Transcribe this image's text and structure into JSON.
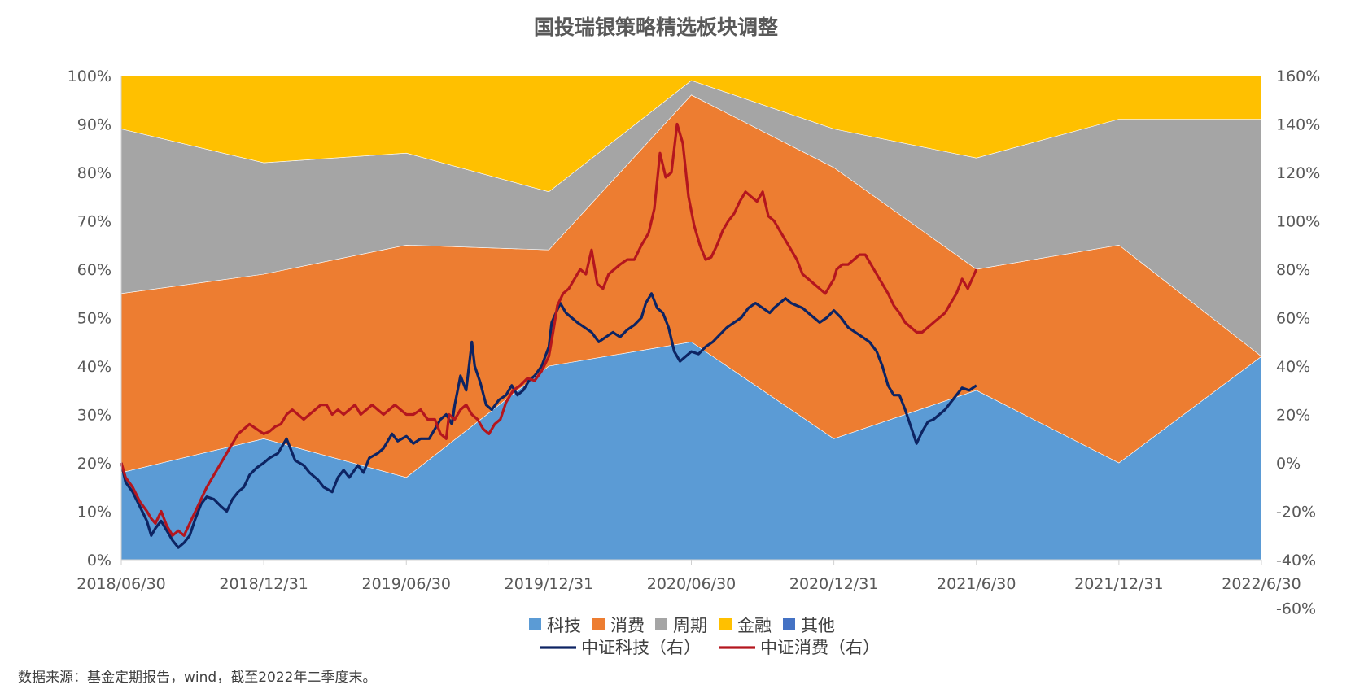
{
  "chart_data": {
    "type": "area",
    "title": "国投瑞银策略精选板块调整",
    "source": "数据来源：基金定期报告，wind，截至2022年二季度末。",
    "x_tick_labels": [
      "2018/06/30",
      "2018/12/31",
      "2019/06/30",
      "2019/12/31",
      "2020/06/30",
      "2020/12/31",
      "2021/6/30",
      "2021/12/31",
      "2022/6/30"
    ],
    "left_axis": {
      "ylim": [
        0,
        100
      ],
      "ticks": [
        "0%",
        "10%",
        "20%",
        "30%",
        "40%",
        "50%",
        "60%",
        "70%",
        "80%",
        "90%",
        "100%"
      ]
    },
    "right_axis": {
      "ylim": [
        -40,
        160
      ],
      "ticks": [
        "-60%",
        "-40%",
        "-20%",
        "0%",
        "20%",
        "40%",
        "60%",
        "80%",
        "100%",
        "120%",
        "140%",
        "160%"
      ]
    },
    "stacked_area": {
      "periods": [
        "2018/06/30",
        "2018/12/31",
        "2019/06/30",
        "2019/12/31",
        "2020/06/30",
        "2020/12/31",
        "2021/6/30",
        "2021/12/31",
        "2022/6/30"
      ],
      "series": [
        {
          "name": "科技",
          "color": "#5B9BD5",
          "values": [
            18,
            25,
            17,
            40,
            45,
            25,
            35,
            20,
            42
          ]
        },
        {
          "name": "消费",
          "color": "#ED7D31",
          "values": [
            37,
            34,
            48,
            24,
            51,
            56,
            25,
            45,
            0
          ]
        },
        {
          "name": "周期",
          "color": "#A5A5A5",
          "values": [
            34,
            23,
            19,
            12,
            3,
            8,
            23,
            26,
            49
          ]
        },
        {
          "name": "金融",
          "color": "#FFC000",
          "values": [
            11,
            18,
            16,
            24,
            1,
            11,
            17,
            9,
            9
          ]
        },
        {
          "name": "其他",
          "color": "#4472C4",
          "values": [
            0,
            0,
            0,
            0,
            0,
            0,
            0,
            0,
            0
          ]
        }
      ]
    },
    "line_series": [
      {
        "name": "中证科技（右）",
        "color": "#0D2463",
        "points": [
          [
            0,
            0
          ],
          [
            0.03,
            -8
          ],
          [
            0.08,
            -12
          ],
          [
            0.13,
            -18
          ],
          [
            0.18,
            -24
          ],
          [
            0.21,
            -30
          ],
          [
            0.24,
            -27
          ],
          [
            0.28,
            -24
          ],
          [
            0.32,
            -28
          ],
          [
            0.36,
            -32
          ],
          [
            0.4,
            -35
          ],
          [
            0.44,
            -33
          ],
          [
            0.48,
            -30
          ],
          [
            0.52,
            -23
          ],
          [
            0.56,
            -17
          ],
          [
            0.6,
            -14
          ],
          [
            0.65,
            -15
          ],
          [
            0.7,
            -18
          ],
          [
            0.74,
            -20
          ],
          [
            0.78,
            -15
          ],
          [
            0.82,
            -12
          ],
          [
            0.86,
            -10
          ],
          [
            0.9,
            -5
          ],
          [
            0.95,
            -2
          ],
          [
            1.0,
            0
          ],
          [
            1.04,
            2
          ],
          [
            1.1,
            4
          ],
          [
            1.16,
            10
          ],
          [
            1.22,
            1
          ],
          [
            1.28,
            -1
          ],
          [
            1.32,
            -4
          ],
          [
            1.38,
            -7
          ],
          [
            1.42,
            -10
          ],
          [
            1.48,
            -12
          ],
          [
            1.52,
            -6
          ],
          [
            1.56,
            -3
          ],
          [
            1.6,
            -6
          ],
          [
            1.66,
            -1
          ],
          [
            1.7,
            -4
          ],
          [
            1.74,
            2
          ],
          [
            1.8,
            4
          ],
          [
            1.84,
            6
          ],
          [
            1.9,
            12
          ],
          [
            1.94,
            9
          ],
          [
            2.0,
            11
          ],
          [
            2.05,
            8
          ],
          [
            2.1,
            10
          ],
          [
            2.16,
            10
          ],
          [
            2.2,
            14
          ],
          [
            2.24,
            18
          ],
          [
            2.28,
            20
          ],
          [
            2.32,
            16
          ],
          [
            2.34,
            24
          ],
          [
            2.38,
            36
          ],
          [
            2.42,
            30
          ],
          [
            2.46,
            50
          ],
          [
            2.48,
            40
          ],
          [
            2.52,
            33
          ],
          [
            2.56,
            24
          ],
          [
            2.6,
            22
          ],
          [
            2.65,
            26
          ],
          [
            2.7,
            28
          ],
          [
            2.74,
            32
          ],
          [
            2.78,
            28
          ],
          [
            2.82,
            30
          ],
          [
            2.86,
            34
          ],
          [
            2.9,
            36
          ],
          [
            2.95,
            40
          ],
          [
            3.0,
            48
          ],
          [
            3.02,
            58
          ],
          [
            3.05,
            62
          ],
          [
            3.08,
            66
          ],
          [
            3.12,
            62
          ],
          [
            3.16,
            60
          ],
          [
            3.2,
            58
          ],
          [
            3.25,
            56
          ],
          [
            3.3,
            54
          ],
          [
            3.35,
            50
          ],
          [
            3.4,
            52
          ],
          [
            3.45,
            54
          ],
          [
            3.5,
            52
          ],
          [
            3.55,
            55
          ],
          [
            3.6,
            57
          ],
          [
            3.65,
            60
          ],
          [
            3.68,
            66
          ],
          [
            3.72,
            70
          ],
          [
            3.76,
            64
          ],
          [
            3.8,
            62
          ],
          [
            3.84,
            56
          ],
          [
            3.88,
            46
          ],
          [
            3.92,
            42
          ],
          [
            3.96,
            44
          ],
          [
            4.0,
            46
          ],
          [
            4.05,
            45
          ],
          [
            4.1,
            48
          ],
          [
            4.15,
            50
          ],
          [
            4.2,
            53
          ],
          [
            4.25,
            56
          ],
          [
            4.3,
            58
          ],
          [
            4.35,
            60
          ],
          [
            4.4,
            64
          ],
          [
            4.45,
            66
          ],
          [
            4.5,
            64
          ],
          [
            4.55,
            62
          ],
          [
            4.58,
            64
          ],
          [
            4.62,
            66
          ],
          [
            4.66,
            68
          ],
          [
            4.7,
            66
          ],
          [
            4.74,
            65
          ],
          [
            4.78,
            64
          ],
          [
            4.82,
            62
          ],
          [
            4.86,
            60
          ],
          [
            4.9,
            58
          ],
          [
            4.95,
            60
          ],
          [
            5.0,
            63
          ],
          [
            5.05,
            60
          ],
          [
            5.1,
            56
          ],
          [
            5.15,
            54
          ],
          [
            5.2,
            52
          ],
          [
            5.25,
            50
          ],
          [
            5.3,
            46
          ],
          [
            5.34,
            40
          ],
          [
            5.38,
            32
          ],
          [
            5.42,
            28
          ],
          [
            5.46,
            28
          ],
          [
            5.5,
            22
          ],
          [
            5.54,
            15
          ],
          [
            5.58,
            8
          ],
          [
            5.62,
            13
          ],
          [
            5.66,
            17
          ],
          [
            5.7,
            18
          ],
          [
            5.74,
            20
          ],
          [
            5.78,
            22
          ],
          [
            5.82,
            25
          ],
          [
            5.86,
            28
          ],
          [
            5.9,
            31
          ],
          [
            5.95,
            30
          ],
          [
            6.0,
            32
          ]
        ]
      },
      {
        "name": "中证消费（右）",
        "color": "#B4161E",
        "points": [
          [
            0,
            0
          ],
          [
            0.03,
            -6
          ],
          [
            0.08,
            -10
          ],
          [
            0.13,
            -16
          ],
          [
            0.18,
            -20
          ],
          [
            0.21,
            -23
          ],
          [
            0.24,
            -25
          ],
          [
            0.28,
            -20
          ],
          [
            0.32,
            -26
          ],
          [
            0.36,
            -30
          ],
          [
            0.4,
            -28
          ],
          [
            0.44,
            -30
          ],
          [
            0.48,
            -25
          ],
          [
            0.52,
            -20
          ],
          [
            0.56,
            -15
          ],
          [
            0.6,
            -10
          ],
          [
            0.65,
            -5
          ],
          [
            0.7,
            0
          ],
          [
            0.74,
            4
          ],
          [
            0.78,
            8
          ],
          [
            0.82,
            12
          ],
          [
            0.86,
            14
          ],
          [
            0.9,
            16
          ],
          [
            0.95,
            14
          ],
          [
            1.0,
            12
          ],
          [
            1.04,
            13
          ],
          [
            1.08,
            15
          ],
          [
            1.12,
            16
          ],
          [
            1.16,
            20
          ],
          [
            1.2,
            22
          ],
          [
            1.24,
            20
          ],
          [
            1.28,
            18
          ],
          [
            1.32,
            20
          ],
          [
            1.36,
            22
          ],
          [
            1.4,
            24
          ],
          [
            1.44,
            24
          ],
          [
            1.48,
            20
          ],
          [
            1.52,
            22
          ],
          [
            1.56,
            20
          ],
          [
            1.6,
            22
          ],
          [
            1.64,
            24
          ],
          [
            1.68,
            20
          ],
          [
            1.72,
            22
          ],
          [
            1.76,
            24
          ],
          [
            1.8,
            22
          ],
          [
            1.84,
            20
          ],
          [
            1.88,
            22
          ],
          [
            1.92,
            24
          ],
          [
            1.96,
            22
          ],
          [
            2.0,
            20
          ],
          [
            2.05,
            20
          ],
          [
            2.1,
            22
          ],
          [
            2.15,
            18
          ],
          [
            2.2,
            18
          ],
          [
            2.24,
            12
          ],
          [
            2.28,
            10
          ],
          [
            2.3,
            20
          ],
          [
            2.34,
            18
          ],
          [
            2.38,
            22
          ],
          [
            2.42,
            24
          ],
          [
            2.46,
            20
          ],
          [
            2.5,
            18
          ],
          [
            2.54,
            14
          ],
          [
            2.58,
            12
          ],
          [
            2.62,
            16
          ],
          [
            2.66,
            18
          ],
          [
            2.7,
            25
          ],
          [
            2.75,
            30
          ],
          [
            2.8,
            32
          ],
          [
            2.85,
            35
          ],
          [
            2.9,
            34
          ],
          [
            2.95,
            38
          ],
          [
            3.0,
            44
          ],
          [
            3.03,
            54
          ],
          [
            3.06,
            65
          ],
          [
            3.1,
            70
          ],
          [
            3.14,
            72
          ],
          [
            3.18,
            76
          ],
          [
            3.22,
            80
          ],
          [
            3.26,
            78
          ],
          [
            3.3,
            88
          ],
          [
            3.34,
            74
          ],
          [
            3.38,
            72
          ],
          [
            3.42,
            78
          ],
          [
            3.46,
            80
          ],
          [
            3.5,
            82
          ],
          [
            3.55,
            84
          ],
          [
            3.6,
            84
          ],
          [
            3.65,
            90
          ],
          [
            3.7,
            95
          ],
          [
            3.74,
            105
          ],
          [
            3.78,
            128
          ],
          [
            3.82,
            118
          ],
          [
            3.86,
            120
          ],
          [
            3.9,
            140
          ],
          [
            3.94,
            132
          ],
          [
            3.98,
            110
          ],
          [
            4.02,
            98
          ],
          [
            4.06,
            90
          ],
          [
            4.1,
            84
          ],
          [
            4.14,
            85
          ],
          [
            4.18,
            90
          ],
          [
            4.22,
            96
          ],
          [
            4.26,
            100
          ],
          [
            4.3,
            103
          ],
          [
            4.34,
            108
          ],
          [
            4.38,
            112
          ],
          [
            4.42,
            110
          ],
          [
            4.46,
            108
          ],
          [
            4.5,
            112
          ],
          [
            4.54,
            102
          ],
          [
            4.58,
            100
          ],
          [
            4.62,
            96
          ],
          [
            4.66,
            92
          ],
          [
            4.7,
            88
          ],
          [
            4.74,
            84
          ],
          [
            4.78,
            78
          ],
          [
            4.82,
            76
          ],
          [
            4.86,
            74
          ],
          [
            4.9,
            72
          ],
          [
            4.94,
            70
          ],
          [
            4.98,
            74
          ],
          [
            5.0,
            76
          ],
          [
            5.02,
            80
          ],
          [
            5.06,
            82
          ],
          [
            5.1,
            82
          ],
          [
            5.14,
            84
          ],
          [
            5.18,
            86
          ],
          [
            5.22,
            86
          ],
          [
            5.26,
            82
          ],
          [
            5.3,
            78
          ],
          [
            5.34,
            74
          ],
          [
            5.38,
            70
          ],
          [
            5.42,
            65
          ],
          [
            5.46,
            62
          ],
          [
            5.5,
            58
          ],
          [
            5.54,
            56
          ],
          [
            5.58,
            54
          ],
          [
            5.62,
            54
          ],
          [
            5.66,
            56
          ],
          [
            5.7,
            58
          ],
          [
            5.74,
            60
          ],
          [
            5.78,
            62
          ],
          [
            5.82,
            66
          ],
          [
            5.86,
            70
          ],
          [
            5.9,
            76
          ],
          [
            5.94,
            72
          ],
          [
            6.0,
            80
          ]
        ]
      }
    ],
    "legend": {
      "areas": [
        "科技",
        "消费",
        "周期",
        "金融",
        "其他"
      ],
      "lines": [
        "中证科技（右）",
        "中证消费（右）"
      ]
    },
    "grid": false
  }
}
